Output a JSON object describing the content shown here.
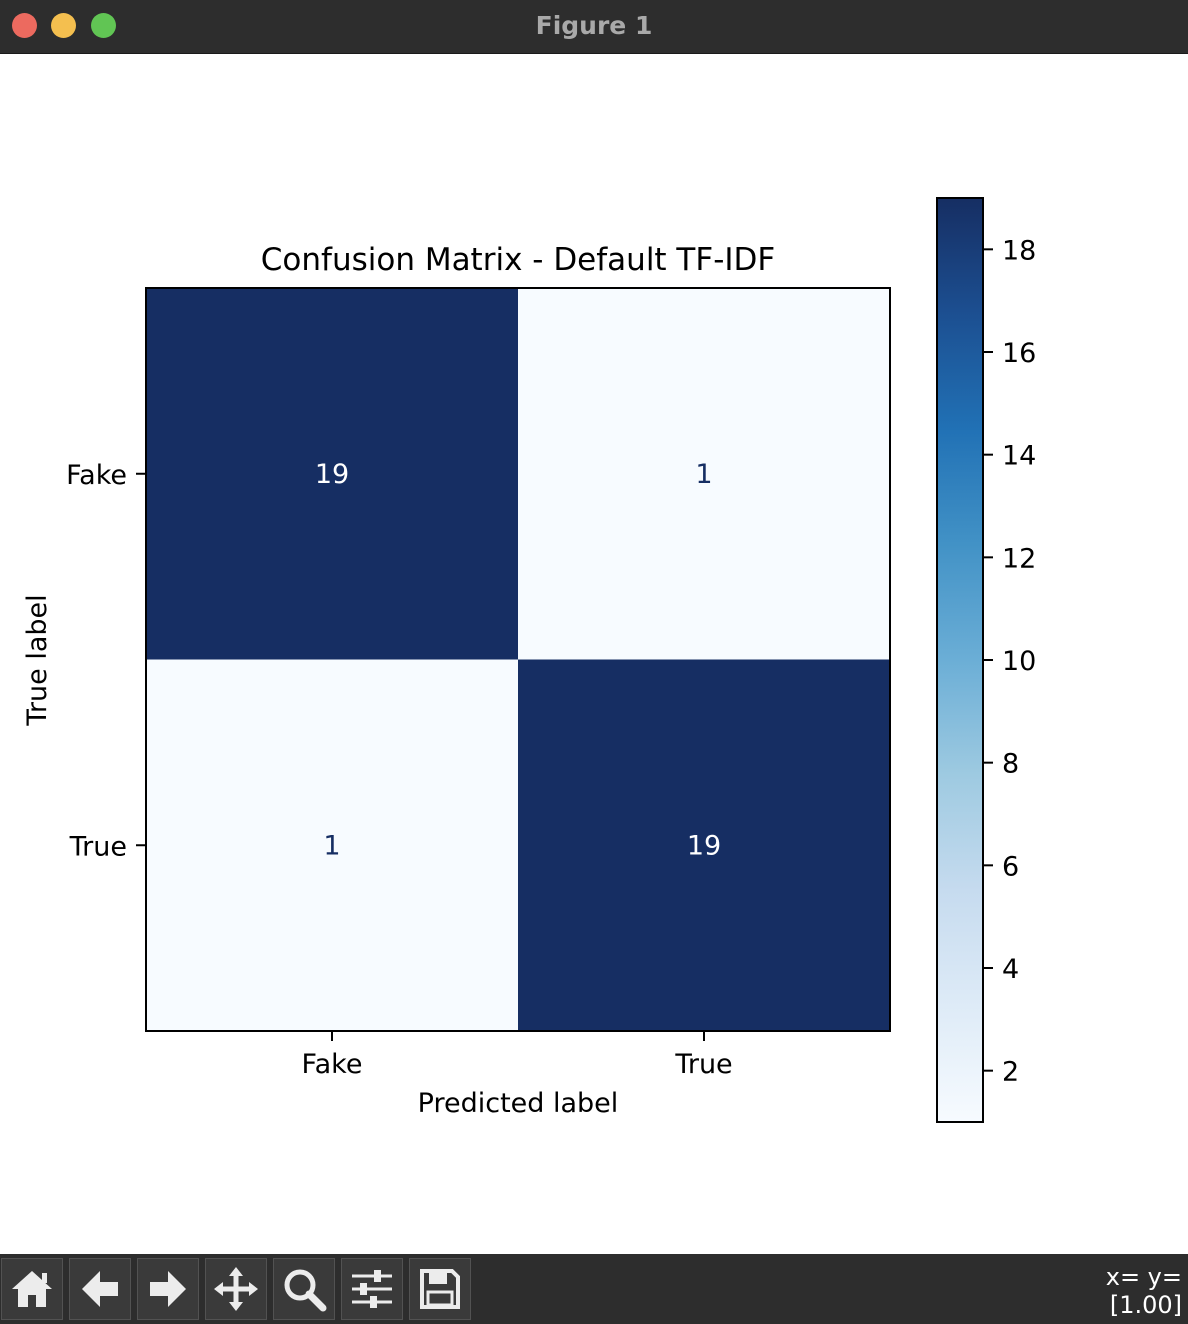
{
  "window": {
    "title": "Figure 1"
  },
  "chart_data": {
    "type": "heatmap",
    "title": "Confusion Matrix - Default TF-IDF",
    "xlabel": "Predicted label",
    "ylabel": "True label",
    "x_categories": [
      "Fake",
      "True"
    ],
    "y_categories": [
      "Fake",
      "True"
    ],
    "matrix": [
      [
        19,
        1
      ],
      [
        1,
        19
      ]
    ],
    "colormap": "Blues",
    "color_low": "#f7fbff",
    "color_high": "#162e63",
    "text_color_on_dark": "#ffffff",
    "text_color_on_light": "#162e63",
    "colorbar": {
      "range": [
        1,
        19
      ],
      "ticks": [
        2,
        4,
        6,
        8,
        10,
        12,
        14,
        16,
        18
      ]
    }
  },
  "toolbar": {
    "buttons": [
      {
        "name": "home-button",
        "icon": "home-icon"
      },
      {
        "name": "back-button",
        "icon": "arrow-left-icon"
      },
      {
        "name": "forward-button",
        "icon": "arrow-right-icon"
      },
      {
        "name": "pan-button",
        "icon": "move-icon"
      },
      {
        "name": "zoom-button",
        "icon": "magnifier-icon"
      },
      {
        "name": "configure-subplots-button",
        "icon": "sliders-icon"
      },
      {
        "name": "save-button",
        "icon": "floppy-disk-icon"
      }
    ],
    "coords_line1": "x= y=",
    "coords_line2": "[1.00]"
  }
}
